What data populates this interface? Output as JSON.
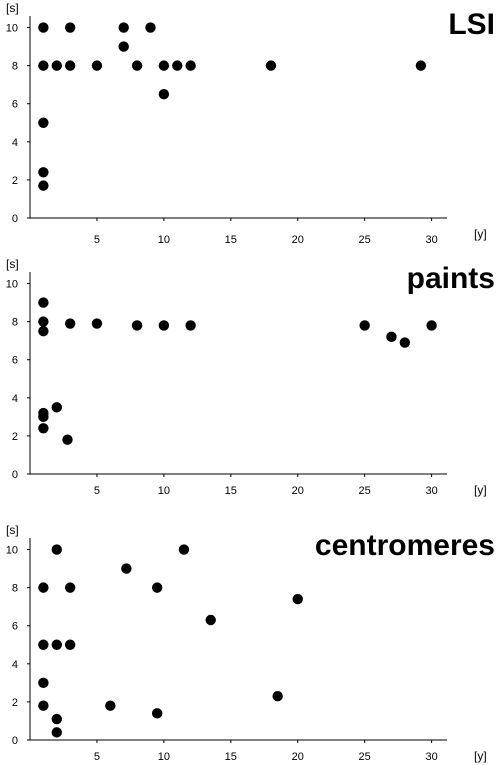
{
  "chart_data": [
    {
      "type": "scatter",
      "title": "LSI",
      "xlabel": "[y]",
      "ylabel": "[s]",
      "xlim": [
        0,
        31
      ],
      "ylim": [
        0,
        10.5
      ],
      "xticks": [
        5,
        10,
        15,
        20,
        25,
        30
      ],
      "yticks": [
        0,
        2,
        4,
        6,
        8,
        10
      ],
      "grid": false,
      "points": [
        {
          "x": 1,
          "y": 10
        },
        {
          "x": 3,
          "y": 10
        },
        {
          "x": 7,
          "y": 10
        },
        {
          "x": 9,
          "y": 10
        },
        {
          "x": 7,
          "y": 9
        },
        {
          "x": 1,
          "y": 8
        },
        {
          "x": 2,
          "y": 8
        },
        {
          "x": 3,
          "y": 8
        },
        {
          "x": 5,
          "y": 8
        },
        {
          "x": 8,
          "y": 8
        },
        {
          "x": 10,
          "y": 8
        },
        {
          "x": 11,
          "y": 8
        },
        {
          "x": 12,
          "y": 8
        },
        {
          "x": 18,
          "y": 8
        },
        {
          "x": 29.2,
          "y": 8
        },
        {
          "x": 10,
          "y": 6.5
        },
        {
          "x": 1,
          "y": 5
        },
        {
          "x": 1,
          "y": 2.4
        },
        {
          "x": 1,
          "y": 1.7
        }
      ]
    },
    {
      "type": "scatter",
      "title": "paints",
      "xlabel": "[y]",
      "ylabel": "[s]",
      "xlim": [
        0,
        31
      ],
      "ylim": [
        0,
        10.5
      ],
      "xticks": [
        5,
        10,
        15,
        20,
        25,
        30
      ],
      "yticks": [
        0,
        2,
        4,
        6,
        8,
        10
      ],
      "grid": false,
      "points": [
        {
          "x": 1,
          "y": 9
        },
        {
          "x": 1,
          "y": 8
        },
        {
          "x": 1,
          "y": 7.5
        },
        {
          "x": 3,
          "y": 7.9
        },
        {
          "x": 5,
          "y": 7.9
        },
        {
          "x": 8,
          "y": 7.8
        },
        {
          "x": 10,
          "y": 7.8
        },
        {
          "x": 12,
          "y": 7.8
        },
        {
          "x": 25,
          "y": 7.8
        },
        {
          "x": 27,
          "y": 7.2
        },
        {
          "x": 28,
          "y": 6.9
        },
        {
          "x": 30,
          "y": 7.8
        },
        {
          "x": 1,
          "y": 3.2
        },
        {
          "x": 1,
          "y": 3
        },
        {
          "x": 2,
          "y": 3.5
        },
        {
          "x": 1,
          "y": 2.4
        },
        {
          "x": 2.8,
          "y": 1.8
        }
      ]
    },
    {
      "type": "scatter",
      "title": "centromeres",
      "xlabel": "[y]",
      "ylabel": "[s]",
      "xlim": [
        0,
        31
      ],
      "ylim": [
        0,
        10.5
      ],
      "xticks": [
        5,
        10,
        15,
        20,
        25,
        30
      ],
      "yticks": [
        0,
        2,
        4,
        6,
        8,
        10
      ],
      "grid": false,
      "points": [
        {
          "x": 2,
          "y": 10
        },
        {
          "x": 11.5,
          "y": 10
        },
        {
          "x": 7.2,
          "y": 9
        },
        {
          "x": 1,
          "y": 8
        },
        {
          "x": 3,
          "y": 8
        },
        {
          "x": 9.5,
          "y": 8
        },
        {
          "x": 20,
          "y": 7.4
        },
        {
          "x": 13.5,
          "y": 6.3
        },
        {
          "x": 1,
          "y": 5
        },
        {
          "x": 2,
          "y": 5
        },
        {
          "x": 3,
          "y": 5
        },
        {
          "x": 1,
          "y": 3
        },
        {
          "x": 18.5,
          "y": 2.3
        },
        {
          "x": 1,
          "y": 1.8
        },
        {
          "x": 6,
          "y": 1.8
        },
        {
          "x": 2,
          "y": 1.1
        },
        {
          "x": 9.5,
          "y": 1.4
        },
        {
          "x": 2,
          "y": 0.4
        }
      ]
    }
  ]
}
